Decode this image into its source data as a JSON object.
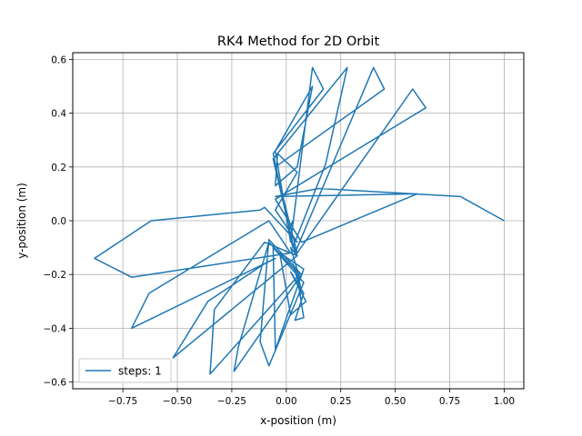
{
  "chart_data": {
    "type": "line",
    "title": "RK4 Method for 2D Orbit",
    "xlabel": "x-position (m)",
    "ylabel": "y-position (m)",
    "xlim": [
      -0.98,
      1.09
    ],
    "ylim": [
      -0.625,
      0.625
    ],
    "xticks": [
      -0.75,
      -0.5,
      -0.25,
      0.0,
      0.25,
      0.5,
      0.75,
      1.0
    ],
    "xtick_labels": [
      "−0.75",
      "−0.50",
      "−0.25",
      "0.00",
      "0.25",
      "0.50",
      "0.75",
      "1.00"
    ],
    "yticks": [
      -0.6,
      -0.4,
      -0.2,
      0.0,
      0.2,
      0.4,
      0.6
    ],
    "ytick_labels": [
      "−0.6",
      "−0.4",
      "−0.2",
      "0.0",
      "0.2",
      "0.4",
      "0.6"
    ],
    "grid": true,
    "legend_position": "lower left",
    "series": [
      {
        "name": "steps: 1",
        "color": "#1f77b4",
        "x": [
          1.0,
          0.8,
          0.15,
          -0.05,
          0.6,
          0.07,
          -0.05,
          0.64,
          0.58,
          0.05,
          -0.05,
          0.45,
          0.4,
          0.04,
          -0.06,
          0.28,
          0.18,
          0.03,
          -0.06,
          0.17,
          0.12,
          0.02,
          -0.05,
          0.12,
          0.05,
          -0.05,
          -0.04,
          0.05,
          -0.05,
          0.05,
          -0.1,
          -0.12,
          -0.62,
          -0.88,
          -0.71,
          0.02,
          -0.08,
          -0.63,
          -0.71,
          -0.05,
          -0.1,
          -0.36,
          -0.52,
          0.05,
          -0.1,
          -0.33,
          -0.35,
          0.06,
          -0.08,
          -0.22,
          -0.24,
          0.07,
          -0.08,
          -0.12,
          -0.08,
          0.08,
          -0.06,
          -0.05,
          0.01,
          0.08,
          -0.03,
          0.02,
          0.09,
          0.02,
          0.08,
          0.04,
          0.08,
          0.05,
          0.07,
          0.06,
          0.05,
          0.07,
          0.03,
          0.06,
          0.02,
          0.05,
          0.01,
          0.03
        ],
        "y": [
          0.0,
          0.09,
          0.12,
          0.09,
          0.1,
          -0.08,
          0.08,
          0.42,
          0.49,
          -0.12,
          0.2,
          0.49,
          0.57,
          -0.12,
          0.23,
          0.57,
          0.21,
          -0.1,
          0.25,
          0.49,
          0.57,
          -0.08,
          0.26,
          0.5,
          0.2,
          0.13,
          0.25,
          0.18,
          0.04,
          -0.08,
          0.05,
          0.04,
          0.0,
          -0.14,
          -0.21,
          -0.12,
          0.0,
          -0.27,
          -0.4,
          -0.14,
          -0.16,
          -0.3,
          -0.51,
          -0.13,
          -0.08,
          -0.33,
          -0.57,
          -0.2,
          -0.08,
          -0.47,
          -0.56,
          -0.2,
          -0.07,
          -0.45,
          -0.54,
          -0.23,
          -0.1,
          -0.48,
          -0.34,
          -0.18,
          -0.12,
          -0.35,
          -0.3,
          -0.19,
          -0.27,
          -0.37,
          -0.36,
          -0.21,
          -0.31,
          -0.25,
          -0.18,
          -0.27,
          -0.16,
          -0.21,
          -0.1,
          -0.13,
          -0.04,
          0.0
        ]
      }
    ]
  }
}
